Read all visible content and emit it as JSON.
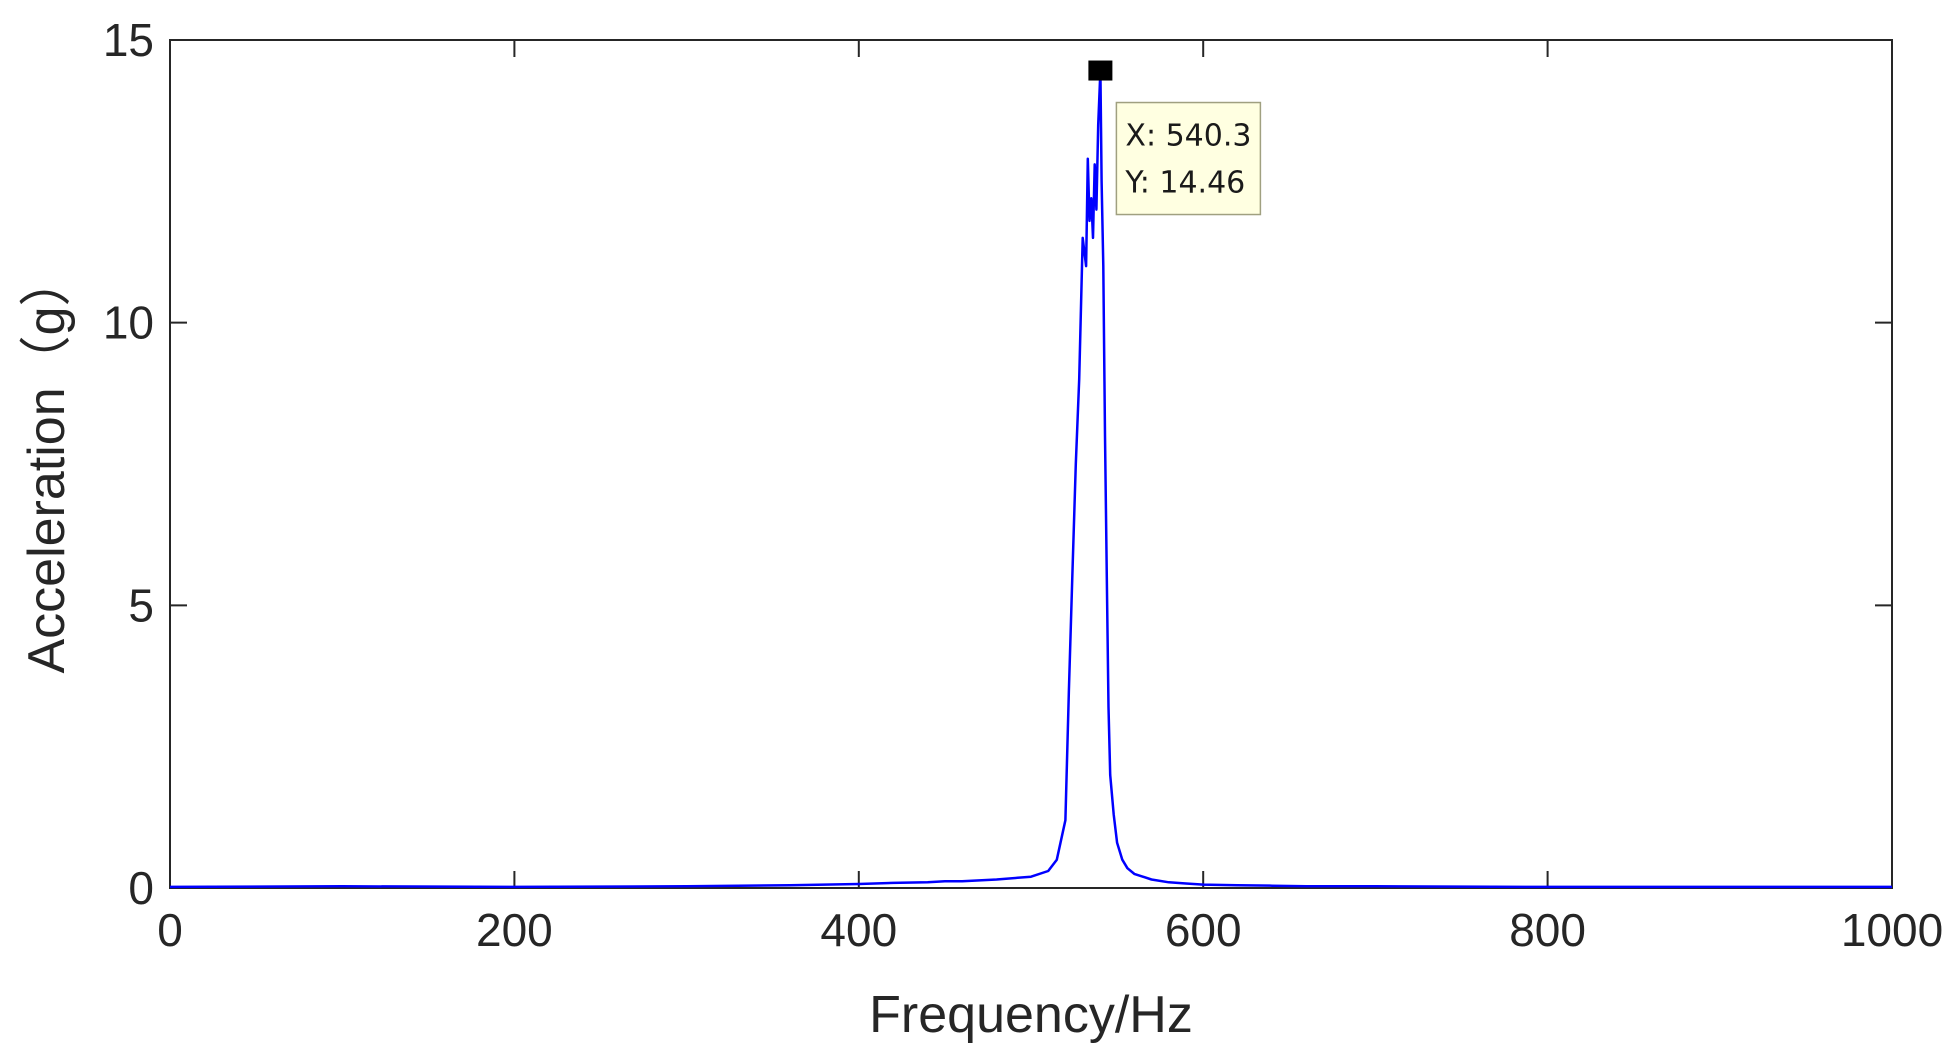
{
  "chart_data": {
    "type": "line",
    "title": "",
    "xlabel": "Frequency/Hz",
    "ylabel": "Acceleration（g）",
    "xlim": [
      0,
      1000
    ],
    "ylim": [
      0,
      15
    ],
    "x_ticks": [
      0,
      200,
      400,
      600,
      800,
      1000
    ],
    "y_ticks": [
      0,
      5,
      10,
      15
    ],
    "x_tick_labels": [
      "0",
      "200",
      "400",
      "600",
      "800",
      "1000"
    ],
    "y_tick_labels": [
      "0",
      "5",
      "10",
      "15"
    ],
    "grid": false,
    "line_color": "#0000ff",
    "series": [
      {
        "x": [
          0,
          100,
          200,
          300,
          360,
          400,
          420,
          440,
          450,
          460,
          480,
          500,
          510,
          515,
          520,
          522,
          524,
          526,
          528,
          530,
          532,
          533,
          534,
          535,
          536,
          537,
          538,
          539,
          540.3,
          541,
          542,
          543,
          544,
          545,
          546,
          548,
          550,
          553,
          556,
          560,
          570,
          580,
          590,
          600,
          620,
          640,
          660,
          700,
          800,
          900,
          1000
        ],
        "y": [
          0.02,
          0.03,
          0.02,
          0.03,
          0.05,
          0.07,
          0.09,
          0.1,
          0.12,
          0.12,
          0.15,
          0.2,
          0.3,
          0.5,
          1.2,
          3.5,
          5.5,
          7.5,
          9.0,
          11.5,
          11.0,
          12.9,
          11.8,
          12.2,
          11.5,
          12.8,
          12.0,
          13.5,
          14.46,
          12.5,
          11.0,
          8.0,
          5.5,
          3.2,
          2.0,
          1.3,
          0.8,
          0.5,
          0.35,
          0.25,
          0.15,
          0.1,
          0.08,
          0.06,
          0.05,
          0.04,
          0.03,
          0.03,
          0.02,
          0.02,
          0.02
        ]
      }
    ],
    "datatip": {
      "x": 540.3,
      "y": 14.46,
      "x_text": "X: 540.3",
      "y_text": "Y: 14.46"
    }
  }
}
